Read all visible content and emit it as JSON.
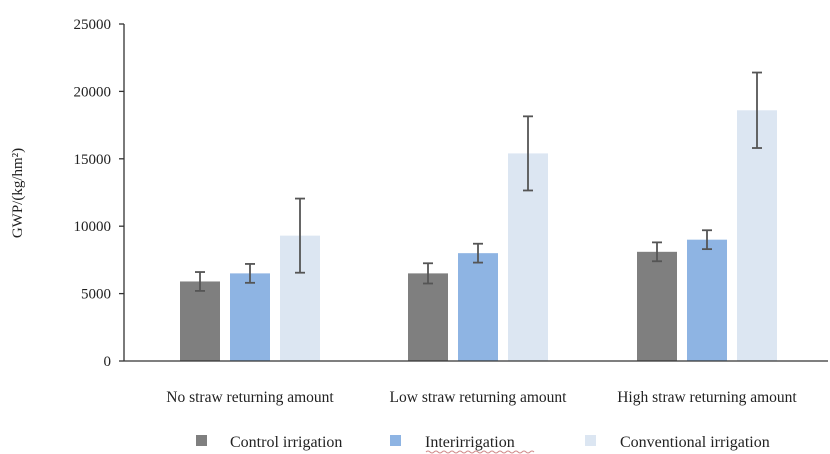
{
  "chart_data": {
    "type": "bar",
    "title": "",
    "xlabel": "",
    "ylabel": "GWP/(kg/hm²)",
    "ylim": [
      0,
      25000
    ],
    "yticks": [
      0,
      5000,
      10000,
      15000,
      20000,
      25000
    ],
    "grid": false,
    "legend_position": "bottom",
    "categories": [
      "No straw returning amount",
      "Low straw returning amount",
      "High straw returning amount"
    ],
    "series": [
      {
        "name": "Control irrigation",
        "color": "#7f7f7f",
        "values": [
          5900,
          6500,
          8100
        ],
        "errors": [
          700,
          750,
          700
        ]
      },
      {
        "name": "Interirrigation",
        "color": "#8eb4e3",
        "values": [
          6500,
          8000,
          9000
        ],
        "errors": [
          700,
          700,
          700
        ]
      },
      {
        "name": "Conventional irrigation",
        "color": "#dce6f2",
        "values": [
          9300,
          15400,
          18600
        ],
        "errors": [
          2750,
          2750,
          2800
        ]
      }
    ]
  }
}
